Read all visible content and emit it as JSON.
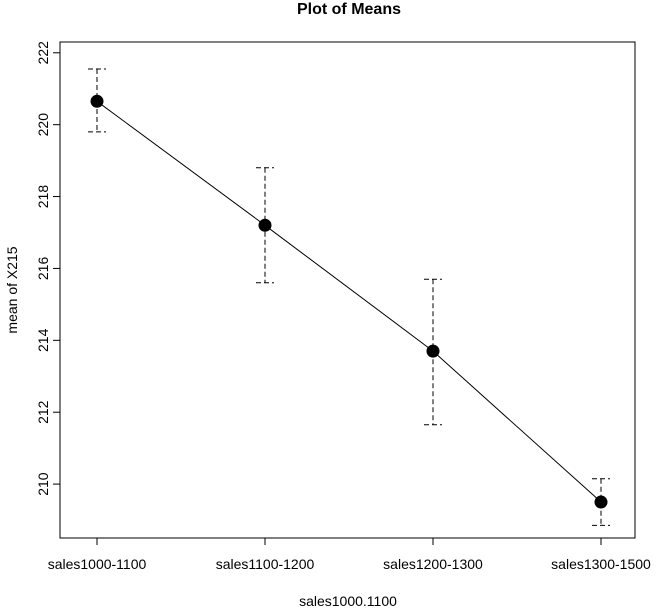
{
  "chart_data": {
    "type": "line",
    "title": "Plot of Means",
    "xlabel": "sales1000.1100",
    "ylabel": "mean of X215",
    "categories": [
      "sales1000-1100",
      "sales1100-1200",
      "sales1200-1300",
      "sales1300-1500"
    ],
    "series": [
      {
        "values": [
          220.65,
          217.2,
          213.7,
          209.5
        ],
        "error_upper": [
          221.55,
          218.8,
          215.7,
          210.15
        ],
        "error_lower": [
          219.8,
          215.6,
          211.65,
          208.85
        ]
      }
    ],
    "ylim": [
      208.5,
      222.3
    ],
    "yticks": [
      210,
      212,
      214,
      216,
      218,
      220,
      222
    ],
    "grid": false,
    "legend": "none",
    "colors": {
      "line": "#000000",
      "point": "#000000",
      "error_bar": "#000000"
    }
  }
}
